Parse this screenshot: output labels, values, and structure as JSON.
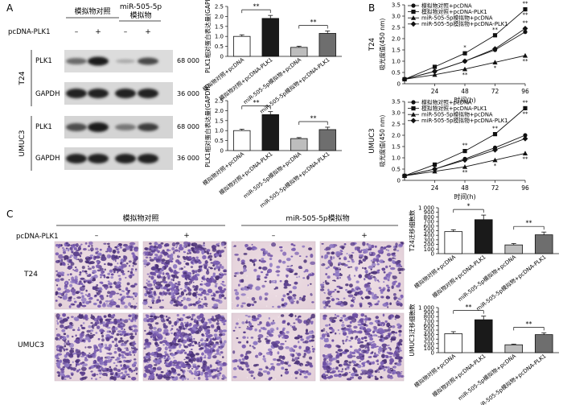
{
  "panel_labels": {
    "A": "A",
    "B": "B",
    "C": "C"
  },
  "western": {
    "group_header_1": "模拟物对照",
    "group_header_2a": "miR-505-5p",
    "group_header_2b": "模拟物",
    "pcdna_label": "pcDNA-PLK1",
    "lane_signs": [
      "–",
      "+",
      "–",
      "+"
    ],
    "cell_t24": "T24",
    "cell_umuc3": "UMUC3",
    "band_plk1": "PLK1",
    "band_gapdh": "GAPDH",
    "mw_plk1": "68 000",
    "mw_gapdh": "36 000"
  },
  "migration": {
    "group_header_1": "模拟物对照",
    "group_header_2": "miR-505-5p模拟物",
    "pcdna_label": "pcDNA-PLK1",
    "signs": [
      "–",
      "+",
      "–",
      "+"
    ],
    "row_t24": "T24",
    "row_umuc3": "UMUC3"
  },
  "chart_data": [
    {
      "type": "bar",
      "panel": "A-T24",
      "ylabel": "PLK1相对蛋白表达量(GAPDH)",
      "ylim": [
        0,
        2.5
      ],
      "yticks": [
        0,
        0.5,
        1.0,
        1.5,
        2.0,
        2.5
      ],
      "ytick_labels": [
        "0",
        "0.5",
        "1.0",
        "1.5",
        "2.0",
        "2.5"
      ],
      "categories": [
        "模拟物对照+pcDNA",
        "模拟物对照+pcDNA-PLK1",
        "miR-505-5p模拟物+pcDNA",
        "miR-505-5p模拟物+pcDNA-PLK1"
      ],
      "values": [
        1.0,
        1.9,
        0.45,
        1.15
      ],
      "errors": [
        0.08,
        0.15,
        0.06,
        0.12
      ],
      "colors": [
        "#ffffff",
        "#1a1a1a",
        "#bdbdbd",
        "#6e6e6e"
      ],
      "sig": [
        {
          "from": 0,
          "to": 1,
          "label": "**"
        },
        {
          "from": 2,
          "to": 3,
          "label": "**"
        }
      ]
    },
    {
      "type": "bar",
      "panel": "A-UMUC3",
      "ylabel": "PLK1相对蛋白表达量(GAPDH)",
      "ylim": [
        0,
        2.5
      ],
      "yticks": [
        0,
        0.5,
        1.0,
        1.5,
        2.0,
        2.5
      ],
      "ytick_labels": [
        "0",
        "0.5",
        "1.0",
        "1.5",
        "2.0",
        "2.5"
      ],
      "categories": [
        "模拟物对照+pcDNA",
        "模拟物对照+pcDNA-PLK1",
        "miR-505-5p模拟物+pcDNA",
        "miR-505-5p模拟物+pcDNA-PLK1"
      ],
      "values": [
        1.0,
        1.8,
        0.6,
        1.05
      ],
      "errors": [
        0.07,
        0.15,
        0.05,
        0.12
      ],
      "colors": [
        "#ffffff",
        "#1a1a1a",
        "#bdbdbd",
        "#6e6e6e"
      ],
      "sig": [
        {
          "from": 0,
          "to": 1,
          "label": "**"
        },
        {
          "from": 2,
          "to": 3,
          "label": "**"
        }
      ]
    },
    {
      "type": "line",
      "panel": "B-T24",
      "cell_label": "T24",
      "ylabel": "吸光度值(450 nm)",
      "xlabel": "时间(h)",
      "x": [
        0,
        24,
        48,
        72,
        96
      ],
      "ylim": [
        0,
        3.5
      ],
      "yticks": [
        0,
        0.5,
        1.0,
        1.5,
        2.0,
        2.5,
        3.0,
        3.5
      ],
      "ytick_labels": [
        "0",
        "0.5",
        "1.0",
        "1.5",
        "2.0",
        "2.5",
        "3.0",
        "3.5"
      ],
      "series": [
        {
          "name": "模拟物对照+pcDNA",
          "values": [
            0.2,
            0.55,
            1.0,
            1.5,
            2.3
          ],
          "marker": "circle"
        },
        {
          "name": "模拟物对照+pcDNA-PLK1",
          "values": [
            0.2,
            0.75,
            1.35,
            2.15,
            3.3
          ],
          "marker": "square"
        },
        {
          "name": "miR-505-5p模拟物+pcDNA",
          "values": [
            0.2,
            0.4,
            0.65,
            0.95,
            1.25
          ],
          "marker": "triangle"
        },
        {
          "name": "miR-505-5p模拟物+pcDNA-PLK1",
          "values": [
            0.2,
            0.55,
            1.0,
            1.55,
            2.45
          ],
          "marker": "diamond"
        }
      ],
      "annotations": [
        "*",
        "**",
        "**",
        "*",
        "**",
        "**",
        "**",
        "**"
      ]
    },
    {
      "type": "line",
      "panel": "B-UMUC3",
      "cell_label": "UMUC3",
      "ylabel": "吸光度值(450 nm)",
      "xlabel": "时间(h)",
      "x": [
        0,
        24,
        48,
        72,
        96
      ],
      "ylim": [
        0,
        3.5
      ],
      "yticks": [
        0,
        0.5,
        1.0,
        1.5,
        2.0,
        2.5,
        3.0,
        3.5
      ],
      "ytick_labels": [
        "0",
        "0.5",
        "1.0",
        "1.5",
        "2.0",
        "2.5",
        "3.0",
        "3.5"
      ],
      "series": [
        {
          "name": "模拟物对照+pcDNA",
          "values": [
            0.2,
            0.5,
            0.95,
            1.45,
            2.0
          ],
          "marker": "circle"
        },
        {
          "name": "模拟物对照+pcDNA-PLK1",
          "values": [
            0.2,
            0.7,
            1.3,
            2.05,
            3.2
          ],
          "marker": "square"
        },
        {
          "name": "miR-505-5p模拟物+pcDNA",
          "values": [
            0.2,
            0.4,
            0.6,
            0.9,
            1.2
          ],
          "marker": "triangle"
        },
        {
          "name": "miR-505-5p模拟物+pcDNA-PLK1",
          "values": [
            0.2,
            0.5,
            0.9,
            1.35,
            1.85
          ],
          "marker": "diamond"
        }
      ],
      "annotations": [
        "**",
        "**",
        "**",
        "*",
        "**",
        "**",
        "**"
      ]
    },
    {
      "type": "bar",
      "panel": "C-T24",
      "ylabel": "T24迁移细胞数",
      "ylim": [
        0,
        1000
      ],
      "yticks": [
        0,
        100,
        200,
        300,
        400,
        500,
        600,
        700,
        800,
        900,
        1000
      ],
      "ytick_labels": [
        "0",
        "100",
        "200",
        "300",
        "400",
        "500",
        "600",
        "700",
        "800",
        "900",
        "1 000"
      ],
      "categories": [
        "模拟物对照+pcDNA",
        "模拟物对照+pcDNA-PLK1",
        "miR-505-5p模拟物+pcDNA",
        "miR-505-5p模拟物+pcDNA-PLK1"
      ],
      "values": [
        480,
        740,
        190,
        410
      ],
      "errors": [
        40,
        100,
        30,
        60
      ],
      "colors": [
        "#ffffff",
        "#1a1a1a",
        "#bdbdbd",
        "#6e6e6e"
      ],
      "sig": [
        {
          "from": 0,
          "to": 1,
          "label": "*"
        },
        {
          "from": 2,
          "to": 3,
          "label": "**"
        }
      ]
    },
    {
      "type": "bar",
      "panel": "C-UMUC3",
      "ylabel": "UMUC3迁移细胞数",
      "ylim": [
        0,
        1000
      ],
      "yticks": [
        0,
        100,
        200,
        300,
        400,
        500,
        600,
        700,
        800,
        900,
        1000
      ],
      "ytick_labels": [
        "0",
        "100",
        "200",
        "300",
        "400",
        "500",
        "600",
        "700",
        "800",
        "900",
        "1 000"
      ],
      "categories": [
        "模拟物对照+pcDNA",
        "模拟物对照+pcDNA-PLK1",
        "miR-505-5p模拟物+pcDNA",
        "miR-505-5p模拟物+pcDNA-PLK1"
      ],
      "values": [
        420,
        730,
        175,
        400
      ],
      "errors": [
        45,
        80,
        15,
        40
      ],
      "colors": [
        "#ffffff",
        "#1a1a1a",
        "#bdbdbd",
        "#6e6e6e"
      ],
      "sig": [
        {
          "from": 0,
          "to": 1,
          "label": "**"
        },
        {
          "from": 2,
          "to": 3,
          "label": "**"
        }
      ]
    }
  ]
}
